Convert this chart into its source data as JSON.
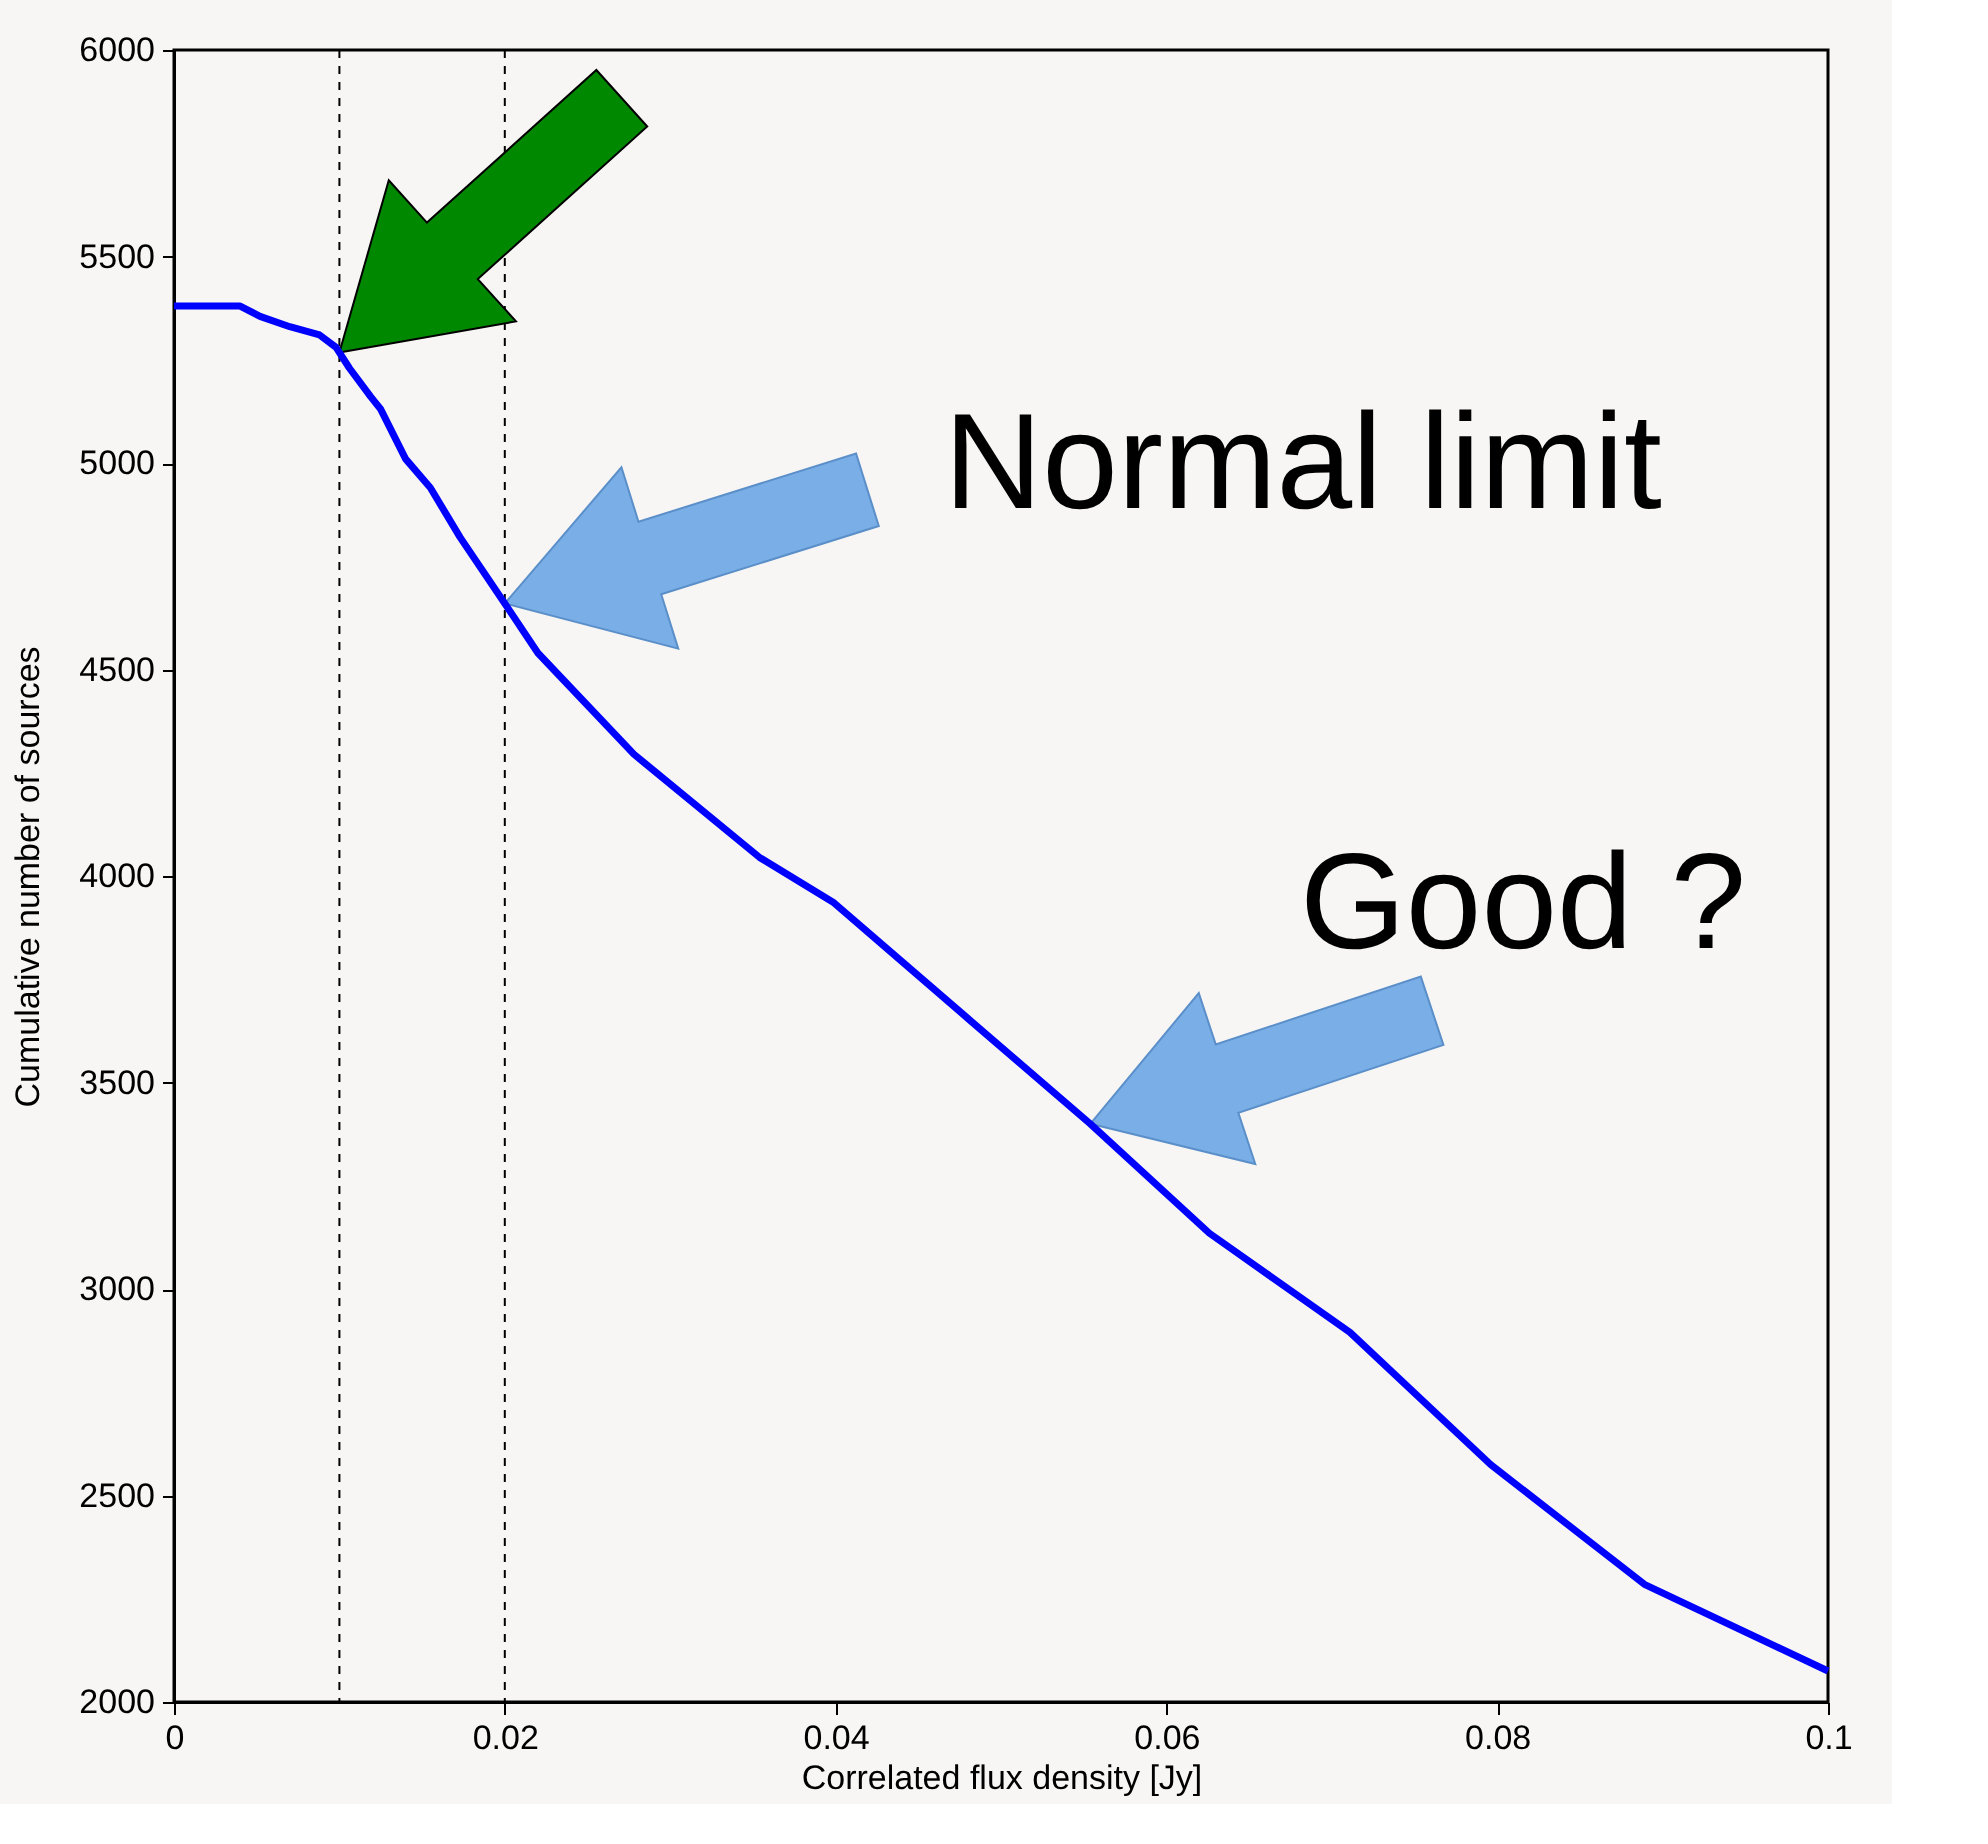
{
  "chart_data": {
    "type": "line",
    "xlabel": "Correlated flux density [Jy]",
    "ylabel": "Cumulative number of sources",
    "x": [
      0,
      0.004,
      0.0052,
      0.007,
      0.0088,
      0.0098,
      0.0106,
      0.0119,
      0.0125,
      0.014,
      0.0155,
      0.0173,
      0.02,
      0.022,
      0.0278,
      0.0354,
      0.0399,
      0.048,
      0.0554,
      0.0626,
      0.0711,
      0.0796,
      0.0889,
      0.1
    ],
    "series": [
      {
        "color": "#0000ff",
        "values": [
          5380,
          5380,
          5355,
          5330,
          5310,
          5280,
          5230,
          5160,
          5130,
          5010,
          4940,
          4820,
          4660,
          4540,
          4295,
          4045,
          3935,
          3655,
          3400,
          3135,
          2895,
          2575,
          2285,
          2075
        ]
      }
    ],
    "xlim": [
      0,
      0.1
    ],
    "xticks": [
      0,
      0.02,
      0.04,
      0.06,
      0.08,
      0.1
    ],
    "ylim": [
      2000,
      6000
    ],
    "yticks": [
      2000,
      2500,
      3000,
      3500,
      4000,
      4500,
      5000,
      5500,
      6000
    ],
    "ref_lines": [
      {
        "axis": "x",
        "value": 0.01,
        "color": "#000000",
        "line_style": "dashed"
      },
      {
        "axis": "x",
        "value": 0.02,
        "color": "#000000",
        "line_style": "dashed"
      }
    ],
    "annotations": [
      "Normal limit",
      "Good ?"
    ],
    "grid": false,
    "marker": "none",
    "line_style": "solid"
  }
}
